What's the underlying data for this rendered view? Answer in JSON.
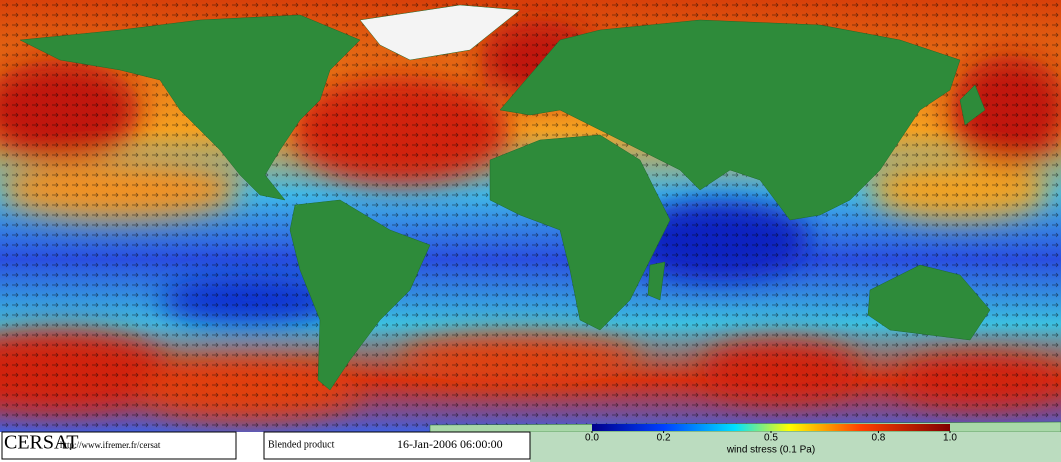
{
  "logo": "CERSAT",
  "url": "http://www.ifremer.fr/cersat",
  "product": "Blended product",
  "timestamp": "16-Jan-2006 06:00:00",
  "colorbar": {
    "label": "wind stress (0.1 Pa)",
    "lim": [
      0,
      1
    ],
    "ticks": [
      {
        "value": 0,
        "label": "0.0"
      },
      0.2,
      0.5,
      0.8,
      {
        "value": 1,
        "label": "1.0"
      }
    ]
  }
}
